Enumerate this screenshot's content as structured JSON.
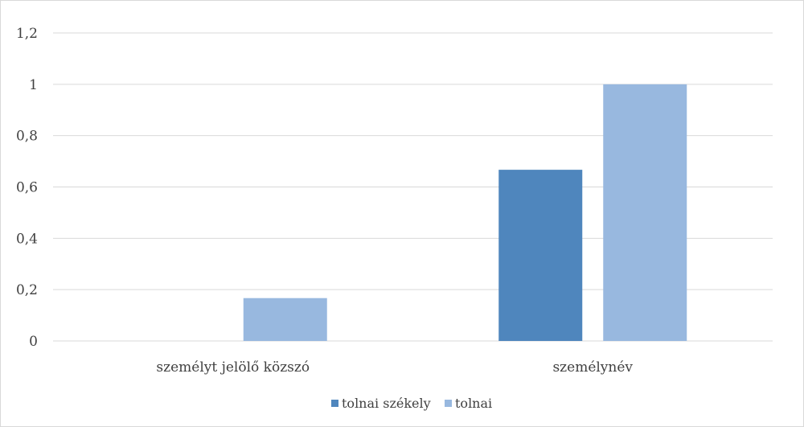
{
  "chart_data": {
    "type": "bar",
    "categories": [
      "személyt jelölő közszó",
      "személynév"
    ],
    "series": [
      {
        "name": "tolnai székely",
        "values": [
          0,
          0.667
        ],
        "color": "#4f86bd"
      },
      {
        "name": "tolnai",
        "values": [
          0.167,
          1
        ],
        "color": "#98b8df"
      }
    ],
    "y_ticks": [
      "0",
      "0,2",
      "0,4",
      "0,6",
      "0,8",
      "1",
      "1,2"
    ],
    "ylim": [
      0,
      1.2
    ],
    "grid": true,
    "legend_position": "bottom",
    "title": "",
    "xlabel": "",
    "ylabel": ""
  }
}
